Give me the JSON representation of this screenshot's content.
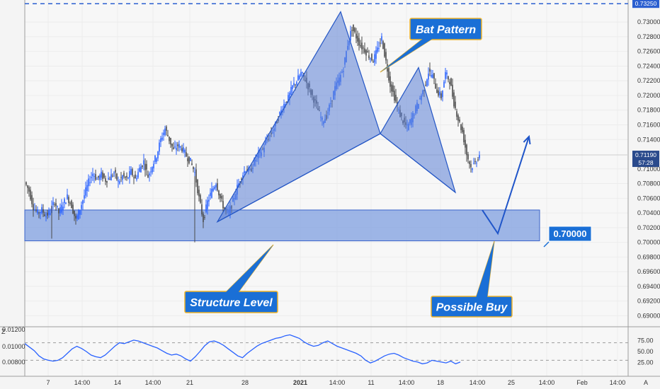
{
  "chart_data": {
    "type": "candlestick",
    "currency_label": "USD",
    "y_axis": {
      "ylim": [
        0.6885,
        0.733
      ],
      "ticks": [
        "0.73000",
        "0.72800",
        "0.72600",
        "0.72400",
        "0.72200",
        "0.72000",
        "0.71800",
        "0.71600",
        "0.71400",
        "0.71000",
        "0.70800",
        "0.70600",
        "0.70400",
        "0.70200",
        "0.70000",
        "0.69800",
        "0.69600",
        "0.69400",
        "0.69200",
        "0.69000"
      ]
    },
    "x_axis": {
      "ticks": [
        "7",
        "14:00",
        "14",
        "14:00",
        "21",
        "28",
        "2021",
        "14:00",
        "11",
        "14:00",
        "18",
        "14:00",
        "25",
        "14:00",
        "Feb",
        "14:00"
      ]
    },
    "price_tags": {
      "top_level": "0.73250",
      "last_price": "0.71190",
      "countdown": "57:28"
    },
    "close_path": [
      [
        0,
        0.7082
      ],
      [
        3,
        0.707
      ],
      [
        6,
        0.7048
      ],
      [
        9,
        0.704
      ],
      [
        12,
        0.7044
      ],
      [
        15,
        0.7036
      ],
      [
        18,
        0.7042
      ],
      [
        21,
        0.7056
      ],
      [
        24,
        0.704
      ],
      [
        27,
        0.7052
      ],
      [
        30,
        0.7062
      ],
      [
        33,
        0.705
      ],
      [
        36,
        0.703
      ],
      [
        39,
        0.7046
      ],
      [
        42,
        0.7064
      ],
      [
        45,
        0.7082
      ],
      [
        48,
        0.7094
      ],
      [
        51,
        0.7086
      ],
      [
        54,
        0.7092
      ],
      [
        57,
        0.7085
      ],
      [
        60,
        0.7088
      ],
      [
        63,
        0.7095
      ],
      [
        66,
        0.7082
      ],
      [
        69,
        0.709
      ],
      [
        72,
        0.7086
      ],
      [
        75,
        0.7096
      ],
      [
        78,
        0.7086
      ],
      [
        81,
        0.71
      ],
      [
        84,
        0.711
      ],
      [
        87,
        0.709
      ],
      [
        90,
        0.7105
      ],
      [
        93,
        0.7118
      ],
      [
        96,
        0.714
      ],
      [
        99,
        0.7155
      ],
      [
        102,
        0.714
      ],
      [
        105,
        0.7125
      ],
      [
        108,
        0.7132
      ],
      [
        111,
        0.7128
      ],
      [
        114,
        0.7118
      ],
      [
        117,
        0.711
      ],
      [
        120,
        0.7095
      ],
      [
        123,
        0.706
      ],
      [
        126,
        0.703
      ],
      [
        129,
        0.7055
      ],
      [
        132,
        0.707
      ],
      [
        135,
        0.7082
      ],
      [
        138,
        0.706
      ],
      [
        141,
        0.7045
      ],
      [
        144,
        0.704
      ],
      [
        147,
        0.7056
      ],
      [
        150,
        0.7075
      ],
      [
        153,
        0.709
      ],
      [
        156,
        0.71
      ],
      [
        159,
        0.7096
      ],
      [
        162,
        0.711
      ],
      [
        165,
        0.712
      ],
      [
        168,
        0.7126
      ],
      [
        171,
        0.714
      ],
      [
        174,
        0.7148
      ],
      [
        177,
        0.716
      ],
      [
        180,
        0.7175
      ],
      [
        183,
        0.7188
      ],
      [
        186,
        0.7196
      ],
      [
        189,
        0.7212
      ],
      [
        192,
        0.722
      ],
      [
        195,
        0.723
      ],
      [
        198,
        0.7222
      ],
      [
        201,
        0.7208
      ],
      [
        204,
        0.7195
      ],
      [
        207,
        0.718
      ],
      [
        210,
        0.7165
      ],
      [
        213,
        0.7172
      ],
      [
        216,
        0.719
      ],
      [
        219,
        0.721
      ],
      [
        222,
        0.7222
      ],
      [
        225,
        0.7238
      ],
      [
        228,
        0.727
      ],
      [
        231,
        0.7292
      ],
      [
        234,
        0.728
      ],
      [
        237,
        0.7268
      ],
      [
        240,
        0.7262
      ],
      [
        243,
        0.7254
      ],
      [
        246,
        0.7248
      ],
      [
        249,
        0.7262
      ],
      [
        252,
        0.7278
      ],
      [
        255,
        0.7246
      ],
      [
        258,
        0.7215
      ],
      [
        261,
        0.7198
      ],
      [
        264,
        0.7178
      ],
      [
        267,
        0.7165
      ],
      [
        270,
        0.7156
      ],
      [
        273,
        0.7168
      ],
      [
        276,
        0.7182
      ],
      [
        279,
        0.7196
      ],
      [
        282,
        0.721
      ],
      [
        285,
        0.7232
      ],
      [
        288,
        0.7226
      ],
      [
        291,
        0.7206
      ],
      [
        294,
        0.7198
      ],
      [
        297,
        0.723
      ],
      [
        300,
        0.722
      ],
      [
        303,
        0.719
      ],
      [
        306,
        0.7168
      ],
      [
        309,
        0.715
      ],
      [
        312,
        0.712
      ],
      [
        315,
        0.7102
      ],
      [
        318,
        0.7108
      ],
      [
        321,
        0.712
      ]
    ],
    "pattern": {
      "name": "Bat Pattern",
      "points": {
        "X": [
          135,
          0.7028
        ],
        "A": [
          222,
          0.7314
        ],
        "B": [
          250,
          0.7148
        ],
        "C": [
          277,
          0.7238
        ],
        "D": [
          303,
          0.7068
        ]
      }
    },
    "structure_level": {
      "label": "Structure Level",
      "value_label": "0.70000",
      "top": 0.7044,
      "bottom": 0.7002
    },
    "projection": {
      "label": "Possible Buy",
      "points": [
        [
          322,
          0.7044
        ],
        [
          333,
          0.7012
        ],
        [
          355,
          0.7144
        ]
      ]
    },
    "dashed_level": 0.7325,
    "annotations": [
      "Bat Pattern",
      "Structure Level",
      "Possible Buy"
    ],
    "oscillator": {
      "ticks": [
        "0.01200",
        "0.01000",
        "0.00800"
      ],
      "right_ticks": [
        "75.00",
        "50.00",
        "25.00"
      ],
      "bands": [
        70,
        30
      ],
      "values": [
        68,
        60,
        52,
        40,
        33,
        30,
        28,
        30,
        36,
        46,
        56,
        62,
        57,
        50,
        42,
        38,
        36,
        42,
        52,
        62,
        70,
        68,
        72,
        76,
        74,
        70,
        66,
        62,
        58,
        52,
        46,
        42,
        44,
        40,
        33,
        28,
        38,
        50,
        63,
        72,
        74,
        70,
        64,
        56,
        48,
        40,
        36,
        46,
        54,
        62,
        68,
        72,
        76,
        80,
        82,
        86,
        88,
        84,
        80,
        72,
        66,
        62,
        64,
        70,
        74,
        68,
        62,
        58,
        54,
        50,
        46,
        40,
        30,
        24,
        28,
        34,
        40,
        44,
        46,
        42,
        36,
        32,
        28,
        26,
        22,
        24,
        30,
        28,
        26,
        24,
        28,
        22,
        26
      ]
    },
    "grid": true
  }
}
